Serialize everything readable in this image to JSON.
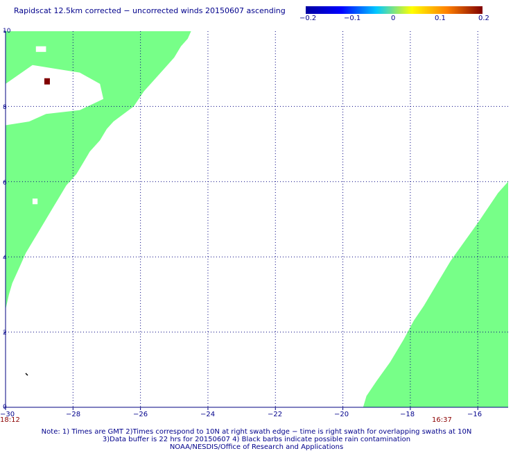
{
  "title": "Rapidscat 12.5km corrected − uncorrected winds 20150607 ascending",
  "colorbar": {
    "ticks": [
      "−0.2",
      "−0.1",
      "0",
      "0.1",
      "0.2"
    ],
    "range": [
      -0.2,
      0.2
    ],
    "colors": [
      "#0000a0",
      "#0000ff",
      "#00c8ff",
      "#ffff00",
      "#ff8000",
      "#800000"
    ]
  },
  "axes": {
    "x_ticks": [
      "−30",
      "−28",
      "−26",
      "−24",
      "−22",
      "−20",
      "−18",
      "−16"
    ],
    "x_range": [
      -30,
      -15.1
    ],
    "y_ticks": [
      "0",
      "2",
      "4",
      "6",
      "8",
      "10"
    ],
    "y_range": [
      0,
      10
    ],
    "grid": true,
    "gridline_color": "#000080"
  },
  "swath": {
    "fill_color": "#77ff88",
    "anomaly_color": "#800000"
  },
  "times": {
    "left": "18:12",
    "right": "16:37"
  },
  "notes": {
    "line1": "Note: 1) Times are GMT 2)Times correspond to 10N at right swath edge − time is right swath for overlapping swaths at 10N",
    "line2": "3)Data buffer is 22 hrs for 20150607 4) Black barbs indicate possible rain contamination",
    "line3": "NOAA/NESDIS/Office of Research and Applications"
  }
}
